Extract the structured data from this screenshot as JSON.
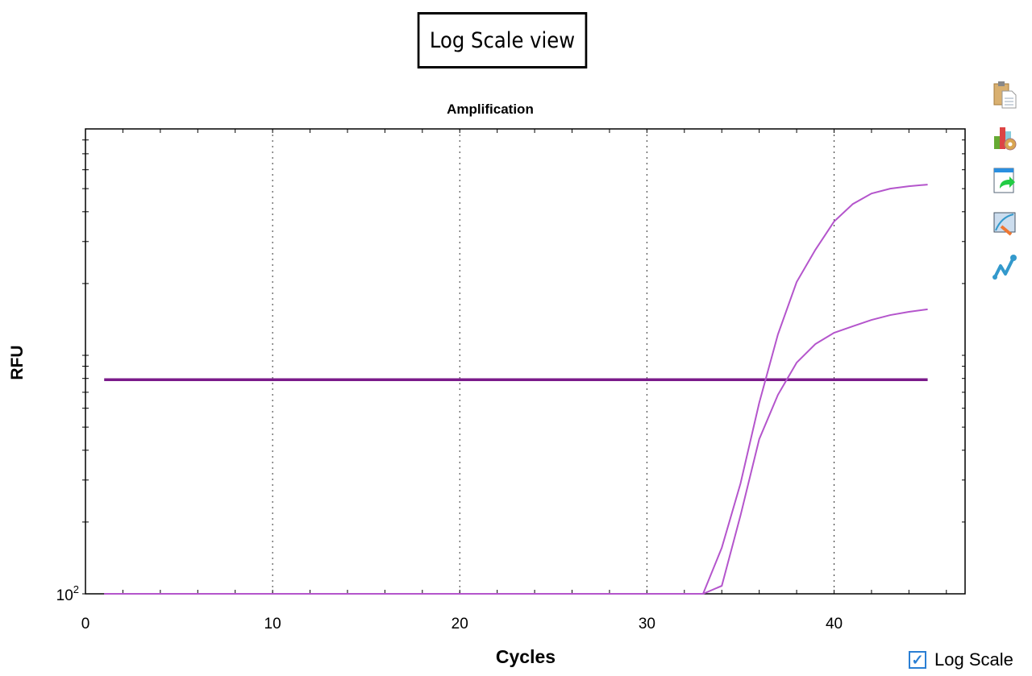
{
  "banner": "Log Scale view",
  "toolbar": {
    "icons": [
      "clipboard-copy-icon",
      "chart-settings-icon",
      "export-icon",
      "edit-chart-icon",
      "trace-styles-icon"
    ]
  },
  "log_scale": {
    "label": "Log Scale",
    "checked": true
  },
  "colors": {
    "curves": "#b455cc",
    "threshold": "#7a1a8a"
  },
  "chart_data": {
    "type": "line",
    "title": "Amplification",
    "xlabel": "Cycles",
    "ylabel": "RFU",
    "y_scale": "log",
    "xlim": [
      0,
      47
    ],
    "ylim": [
      100,
      8900
    ],
    "x_ticks": [
      0,
      10,
      20,
      30,
      40
    ],
    "y_tick_labels": [
      {
        "value": 100,
        "label": "10",
        "exp": "2"
      }
    ],
    "grid": "vertical dotted at major x ticks",
    "threshold": {
      "value": 790,
      "x_range": [
        1,
        45
      ]
    },
    "x": [
      1,
      2,
      3,
      4,
      5,
      6,
      7,
      8,
      9,
      10,
      11,
      12,
      13,
      14,
      15,
      16,
      17,
      18,
      19,
      20,
      21,
      22,
      23,
      24,
      25,
      26,
      27,
      28,
      29,
      30,
      31,
      32,
      33,
      34,
      35,
      36,
      37,
      38,
      39,
      40,
      41,
      42,
      43,
      44,
      45
    ],
    "series": [
      {
        "values": [
          100,
          100,
          100,
          100,
          100,
          100,
          100,
          100,
          100,
          100,
          100,
          100,
          100,
          100,
          100,
          100,
          100,
          100,
          100,
          100,
          100,
          100,
          100,
          100,
          100,
          100,
          100,
          100,
          100,
          100,
          100,
          100,
          100,
          156,
          290,
          632,
          1224,
          2030,
          2770,
          3640,
          4310,
          4770,
          5000,
          5120,
          5200
        ]
      },
      {
        "values": [
          100,
          100,
          100,
          100,
          100,
          100,
          100,
          100,
          100,
          100,
          100,
          100,
          100,
          100,
          100,
          100,
          100,
          100,
          100,
          100,
          100,
          100,
          100,
          100,
          100,
          100,
          100,
          100,
          100,
          100,
          100,
          100,
          100,
          108,
          213,
          445,
          683,
          932,
          1115,
          1243,
          1324,
          1408,
          1475,
          1522,
          1560
        ]
      }
    ]
  }
}
